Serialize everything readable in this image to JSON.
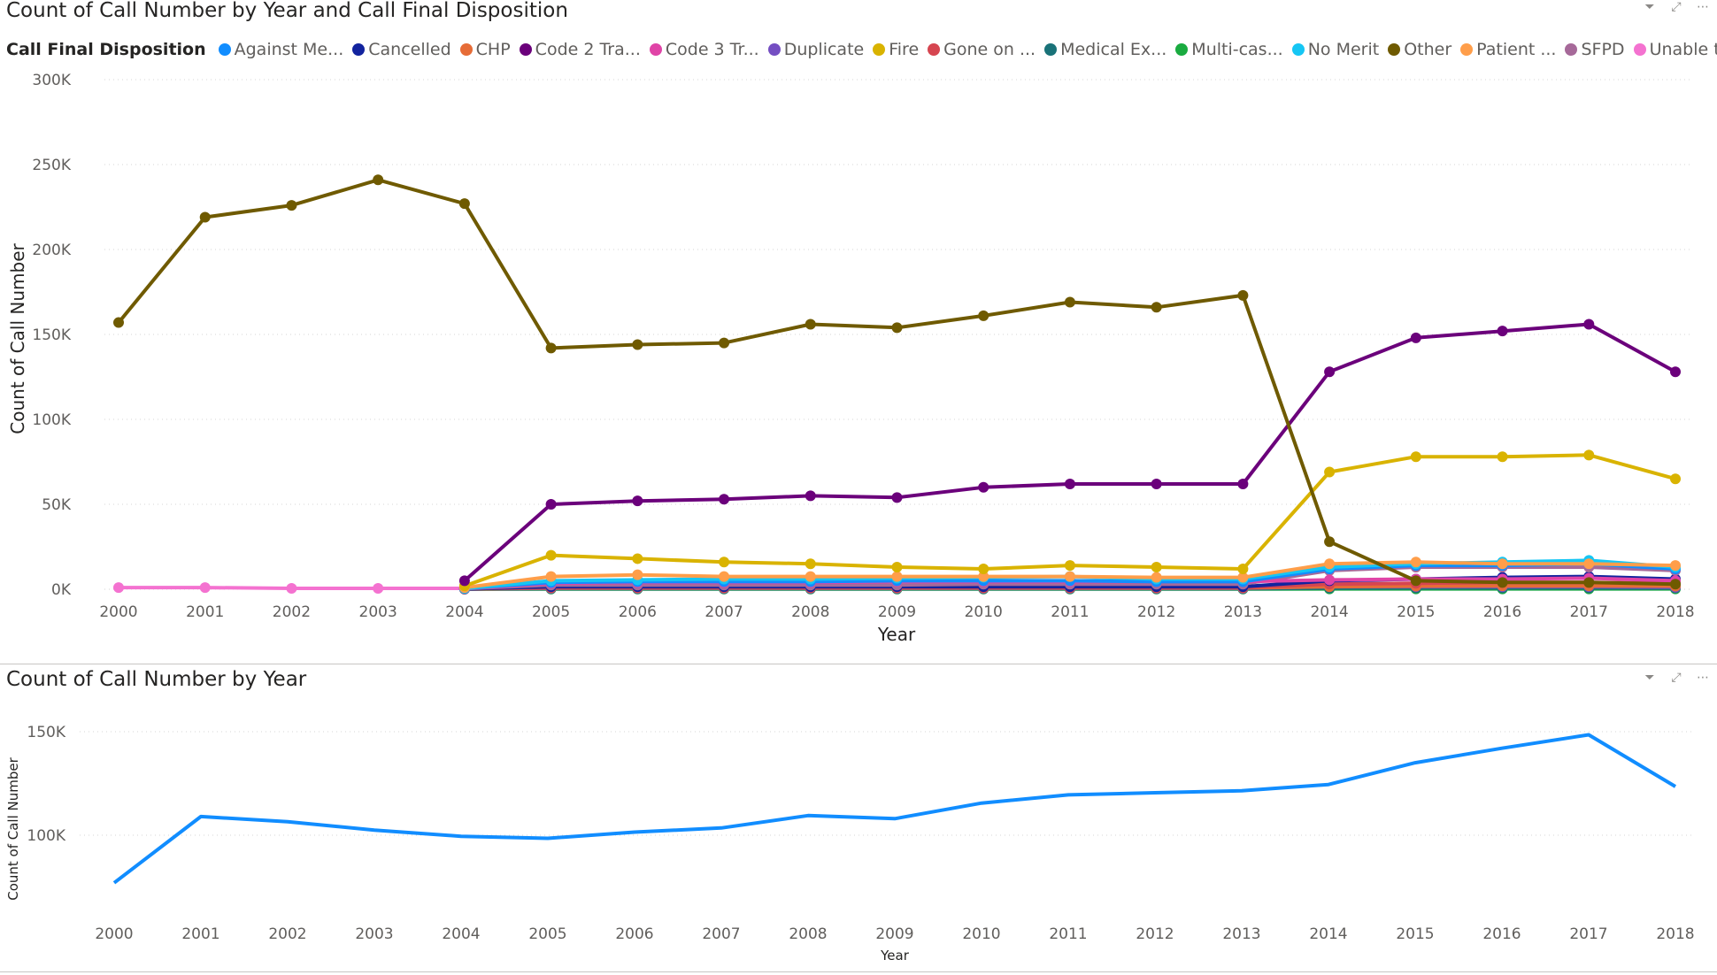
{
  "top_chart": {
    "title": "Count of Call Number by Year and Call Final Disposition",
    "legend_title": "Call Final Disposition",
    "legend": [
      {
        "label": "Against Me...",
        "color": "#118DFF"
      },
      {
        "label": "Cancelled",
        "color": "#12239E"
      },
      {
        "label": "CHP",
        "color": "#E66C37"
      },
      {
        "label": "Code 2 Tra...",
        "color": "#6B007B"
      },
      {
        "label": "Code 3 Tr...",
        "color": "#E044A7"
      },
      {
        "label": "Duplicate",
        "color": "#744EC2"
      },
      {
        "label": "Fire",
        "color": "#D9B300"
      },
      {
        "label": "Gone on ...",
        "color": "#D64550"
      },
      {
        "label": "Medical Ex...",
        "color": "#197278"
      },
      {
        "label": "Multi-cas...",
        "color": "#1AAB40"
      },
      {
        "label": "No Merit",
        "color": "#15C6F4"
      },
      {
        "label": "Other",
        "color": "#6F5A00"
      },
      {
        "label": "Patient ...",
        "color": "#FF9E4A"
      },
      {
        "label": "SFPD",
        "color": "#A66999"
      },
      {
        "label": "Unable to ...",
        "color": "#F472D0"
      }
    ]
  },
  "bottom_chart": {
    "title": "Count of Call Number by Year"
  },
  "chart_data": [
    {
      "type": "line",
      "title": "Count of Call Number by Year and Call Final Disposition",
      "xlabel": "Year",
      "ylabel": "Count of Call Number",
      "ylim": [
        0,
        300000
      ],
      "yticks": [
        "0K",
        "50K",
        "100K",
        "150K",
        "200K",
        "250K",
        "300K"
      ],
      "grid": true,
      "legend_position": "top-left",
      "x": [
        "2000",
        "2001",
        "2002",
        "2003",
        "2004",
        "2005",
        "2006",
        "2007",
        "2008",
        "2009",
        "2010",
        "2011",
        "2012",
        "2013",
        "2014",
        "2015",
        "2016",
        "2017",
        "2018"
      ],
      "series": [
        {
          "name": "Other",
          "color": "#6F5A00",
          "values": [
            157000,
            219000,
            226000,
            241000,
            227000,
            142000,
            144000,
            145000,
            156000,
            154000,
            161000,
            169000,
            166000,
            173000,
            28000,
            5000,
            4000,
            4000,
            3000
          ]
        },
        {
          "name": "Code 2 Tra...",
          "color": "#6B007B",
          "values": [
            null,
            null,
            null,
            null,
            5000,
            50000,
            52000,
            53000,
            55000,
            54000,
            60000,
            62000,
            62000,
            62000,
            128000,
            148000,
            152000,
            156000,
            128000
          ]
        },
        {
          "name": "Fire",
          "color": "#D9B300",
          "values": [
            null,
            null,
            null,
            null,
            2000,
            20000,
            18000,
            16000,
            15000,
            13000,
            12000,
            14000,
            13000,
            12000,
            69000,
            78000,
            78000,
            79000,
            65000
          ]
        },
        {
          "name": "Patient ...",
          "color": "#FF9E4A",
          "values": [
            null,
            null,
            null,
            null,
            1000,
            7500,
            8500,
            7500,
            7500,
            7500,
            7500,
            7500,
            7000,
            7000,
            15000,
            16000,
            15000,
            15000,
            14000
          ]
        },
        {
          "name": "No Merit",
          "color": "#15C6F4",
          "values": [
            null,
            null,
            null,
            null,
            500,
            5000,
            5500,
            6000,
            6000,
            6500,
            7000,
            7500,
            6000,
            6000,
            13000,
            15000,
            16000,
            17000,
            13000
          ]
        },
        {
          "name": "Against Me...",
          "color": "#118DFF",
          "values": [
            null,
            null,
            null,
            null,
            500,
            4000,
            4500,
            4500,
            4500,
            5000,
            5000,
            5000,
            4500,
            4500,
            12000,
            14000,
            14000,
            15000,
            12000
          ]
        },
        {
          "name": "Code 3 Tr...",
          "color": "#E044A7",
          "values": [
            null,
            null,
            null,
            null,
            400,
            3500,
            4000,
            4000,
            4000,
            4500,
            4500,
            4500,
            4500,
            4500,
            5500,
            6000,
            6000,
            6500,
            5000
          ]
        },
        {
          "name": "SFPD",
          "color": "#A66999",
          "values": [
            null,
            null,
            null,
            null,
            300,
            2500,
            2500,
            2500,
            2500,
            2500,
            3000,
            3000,
            3000,
            3000,
            11000,
            13000,
            13000,
            13000,
            11000
          ]
        },
        {
          "name": "Cancelled",
          "color": "#12239E",
          "values": [
            null,
            null,
            null,
            null,
            200,
            1500,
            1500,
            1500,
            1500,
            1500,
            1500,
            1500,
            1500,
            1500,
            5000,
            6000,
            7000,
            7500,
            6000
          ]
        },
        {
          "name": "Gone on ...",
          "color": "#D64550",
          "values": [
            null,
            null,
            null,
            null,
            200,
            1000,
            1000,
            1000,
            1000,
            1000,
            1000,
            1000,
            1000,
            1000,
            3000,
            3500,
            4000,
            4000,
            3500
          ]
        },
        {
          "name": "CHP",
          "color": "#E66C37",
          "values": [
            null,
            null,
            null,
            null,
            100,
            800,
            800,
            800,
            800,
            800,
            800,
            800,
            800,
            800,
            1500,
            1800,
            2000,
            2000,
            1800
          ]
        },
        {
          "name": "Duplicate",
          "color": "#744EC2",
          "values": [
            null,
            null,
            null,
            null,
            100,
            600,
            600,
            600,
            600,
            600,
            600,
            600,
            600,
            600,
            1500,
            1500,
            1500,
            1500,
            1200
          ]
        },
        {
          "name": "Medical Ex...",
          "color": "#197278",
          "values": [
            null,
            null,
            null,
            null,
            100,
            300,
            300,
            300,
            300,
            300,
            300,
            300,
            300,
            300,
            700,
            800,
            800,
            800,
            700
          ]
        },
        {
          "name": "Multi-cas...",
          "color": "#1AAB40",
          "values": [
            null,
            null,
            null,
            null,
            50,
            100,
            100,
            100,
            100,
            100,
            100,
            100,
            100,
            100,
            200,
            200,
            200,
            200,
            200
          ]
        },
        {
          "name": "Unable to ...",
          "color": "#F472D0",
          "values": [
            1000,
            1000,
            500,
            500,
            500,
            1000,
            1000,
            1000,
            1000,
            1000,
            1000,
            1000,
            1000,
            1000,
            3000,
            3500,
            3500,
            3500,
            3000
          ]
        }
      ]
    },
    {
      "type": "line",
      "title": "Count of Call Number by Year",
      "xlabel": "Year",
      "ylabel": "Count of Call Number",
      "yticks": [
        "100K",
        "150K"
      ],
      "ylim": [
        75000,
        155000
      ],
      "grid": true,
      "x": [
        "2000",
        "2001",
        "2002",
        "2003",
        "2004",
        "2005",
        "2006",
        "2007",
        "2008",
        "2009",
        "2010",
        "2011",
        "2012",
        "2013",
        "2014",
        "2015",
        "2016",
        "2017",
        "2018"
      ],
      "series": [
        {
          "name": "Count of Call Number",
          "color": "#118DFF",
          "values": [
            77000,
            109000,
            106500,
            102500,
            99500,
            98500,
            101500,
            103500,
            109500,
            108000,
            115500,
            119500,
            120500,
            121500,
            124500,
            135000,
            142000,
            148500,
            123500
          ]
        }
      ]
    }
  ]
}
